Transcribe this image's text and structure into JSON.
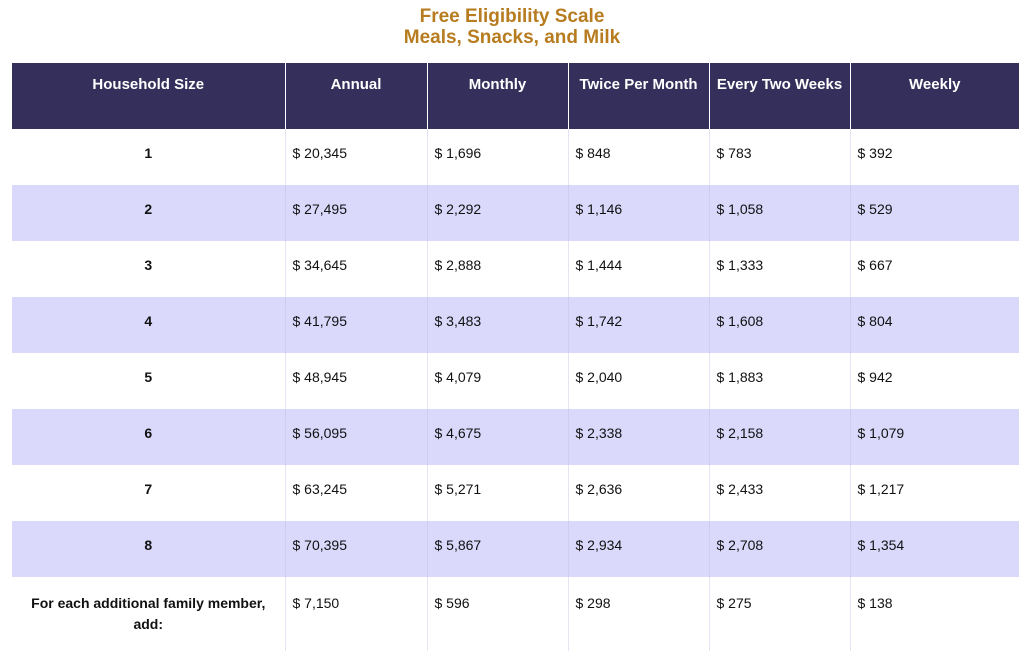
{
  "title": {
    "line1": "Free Eligibility Scale",
    "line2": "Meals, Snacks, and Milk"
  },
  "table": {
    "headers": [
      "Household Size",
      "Annual",
      "Monthly",
      "Twice Per Month",
      "Every Two Weeks",
      "Weekly"
    ],
    "rows": [
      [
        "1",
        "$ 20,345",
        "$ 1,696",
        "$ 848",
        "$ 783",
        "$ 392"
      ],
      [
        "2",
        "$ 27,495",
        "$ 2,292",
        "$ 1,146",
        "$ 1,058",
        "$ 529"
      ],
      [
        "3",
        "$ 34,645",
        "$ 2,888",
        "$ 1,444",
        "$ 1,333",
        "$ 667"
      ],
      [
        "4",
        "$ 41,795",
        "$ 3,483",
        "$ 1,742",
        "$ 1,608",
        "$ 804"
      ],
      [
        "5",
        "$ 48,945",
        "$ 4,079",
        "$ 2,040",
        "$ 1,883",
        "$ 942"
      ],
      [
        "6",
        "$ 56,095",
        "$ 4,675",
        "$ 2,338",
        "$ 2,158",
        "$ 1,079"
      ],
      [
        "7",
        "$ 63,245",
        "$ 5,271",
        "$ 2,636",
        "$ 2,433",
        "$ 1,217"
      ],
      [
        "8",
        "$ 70,395",
        "$ 5,867",
        "$ 2,934",
        "$ 2,708",
        "$ 1,354"
      ],
      [
        "For each additional family member, add:",
        "$ 7,150",
        "$ 596",
        "$ 298",
        "$ 275",
        "$ 138"
      ]
    ]
  },
  "colors": {
    "title": "#b77c1f",
    "header_bg": "#35305b",
    "header_text": "#ffffff",
    "row_alt": "#dad8fb",
    "row_plain": "#ffffff"
  }
}
